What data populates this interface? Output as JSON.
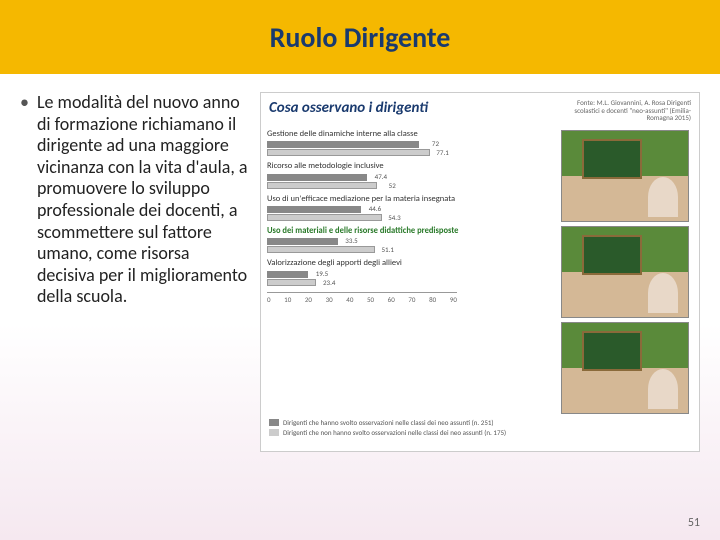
{
  "header": {
    "title": "Ruolo Dirigente"
  },
  "body": {
    "bullet_text": "Le modalità del nuovo anno di formazione richiamano il dirigente ad una maggiore vicinanza con la vita d'aula, a promuovere lo sviluppo professionale dei docenti, a scommettere sul fattore umano, come risorsa decisiva per il miglioramento della scuola."
  },
  "chart": {
    "title": "Cosa osservano i dirigenti",
    "source": "Fonte: M.L. Giovannini, A. Rosa Dirigenti scolastici e docenti \"neo-assunti\" (Emilia-Romagna 2015)",
    "type": "bar",
    "x_max": 90,
    "xticks": [
      0,
      10,
      20,
      30,
      40,
      50,
      60,
      70,
      80,
      90
    ],
    "categories": [
      {
        "label": "Gestione delle dinamiche interne alla classe",
        "green": false,
        "v1": 72.0,
        "v2": 77.1
      },
      {
        "label": "Ricorso alle metodologie inclusive",
        "green": false,
        "v1": 47.4,
        "v2": 52.0
      },
      {
        "label": "Uso di un'efficace mediazione per la materia insegnata",
        "green": false,
        "v1": 44.6,
        "v2": 54.3
      },
      {
        "label": "Uso dei materiali e delle risorse didattiche predisposte",
        "green": true,
        "v1": 33.5,
        "v2": 51.1
      },
      {
        "label": "Valorizzazione degli apporti degli allievi",
        "green": false,
        "v1": 19.5,
        "v2": 23.4
      }
    ],
    "bar_colors": {
      "series1": "#888888",
      "series2": "#cccccc"
    },
    "legend": [
      "Dirigenti che hanno svolto osservazioni nelle classi dei neo assunti (n. 251)",
      "Dirigenti che non hanno svolto osservazioni nelle classi dei neo assunti (n. 175)"
    ]
  },
  "page_number": "51"
}
